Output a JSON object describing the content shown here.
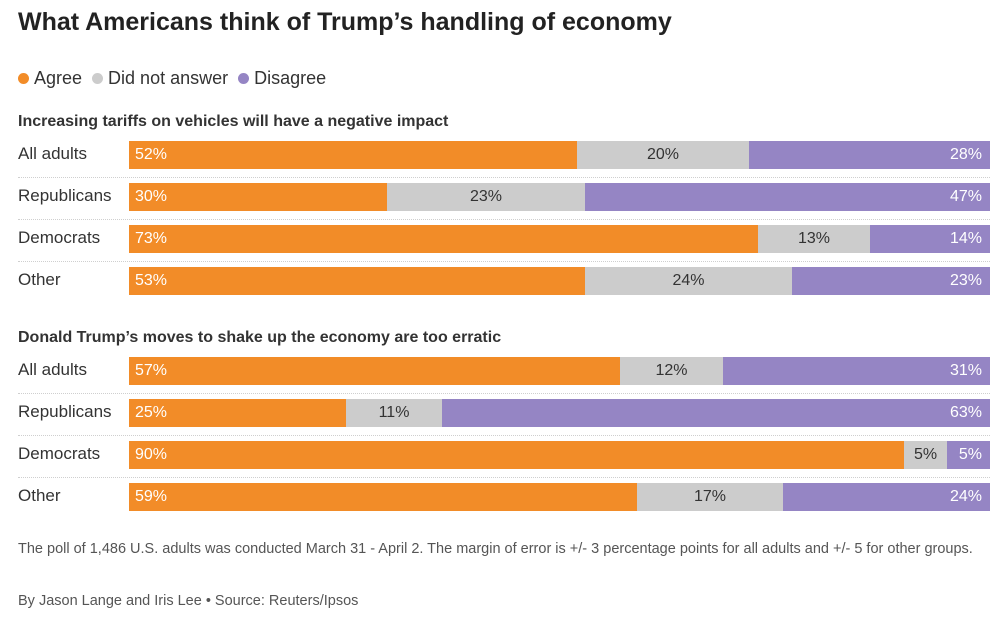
{
  "title": "What Americans think of Trump’s handling of economy",
  "colors": {
    "agree": "#f28c28",
    "did_not_answer": "#cccccc",
    "disagree": "#9585c4"
  },
  "legend": [
    {
      "label": "Agree",
      "color": "#f28c28"
    },
    {
      "label": "Did not answer",
      "color": "#cccccc"
    },
    {
      "label": "Disagree",
      "color": "#9585c4"
    }
  ],
  "chart_data": [
    {
      "type": "bar",
      "orientation": "horizontal",
      "stacked": true,
      "percent": true,
      "title": "Increasing tariffs on vehicles will have a negative impact",
      "categories": [
        "All adults",
        "Republicans",
        "Democrats",
        "Other"
      ],
      "series": [
        {
          "name": "Agree",
          "values": [
            52,
            30,
            73,
            53
          ],
          "labels": [
            "52%",
            "30%",
            "73%",
            "53%"
          ]
        },
        {
          "name": "Did not answer",
          "values": [
            20,
            23,
            13,
            24
          ],
          "labels": [
            "20%",
            "23%",
            "13%",
            "24%"
          ]
        },
        {
          "name": "Disagree",
          "values": [
            28,
            47,
            14,
            23
          ],
          "labels": [
            "28%",
            "47%",
            "14%",
            "23%"
          ]
        }
      ]
    },
    {
      "type": "bar",
      "orientation": "horizontal",
      "stacked": true,
      "percent": true,
      "title": "Donald Trump’s moves to shake up the economy are too erratic",
      "categories": [
        "All adults",
        "Republicans",
        "Democrats",
        "Other"
      ],
      "series": [
        {
          "name": "Agree",
          "values": [
            57,
            25,
            90,
            59
          ],
          "labels": [
            "57%",
            "25%",
            "90%",
            "59%"
          ]
        },
        {
          "name": "Did not answer",
          "values": [
            12,
            11,
            5,
            17
          ],
          "labels": [
            "12%",
            "11%",
            "5%",
            "17%"
          ]
        },
        {
          "name": "Disagree",
          "values": [
            31,
            63,
            5,
            24
          ],
          "labels": [
            "31%",
            "63%",
            "5%",
            "24%"
          ]
        }
      ]
    }
  ],
  "footnote": "The poll of 1,486 U.S. adults was conducted March 31 - April 2. The margin of error is +/- 3 percentage points for all adults and +/- 5 for other groups.",
  "credit": "By Jason Lange and Iris Lee • Source: Reuters/Ipsos"
}
